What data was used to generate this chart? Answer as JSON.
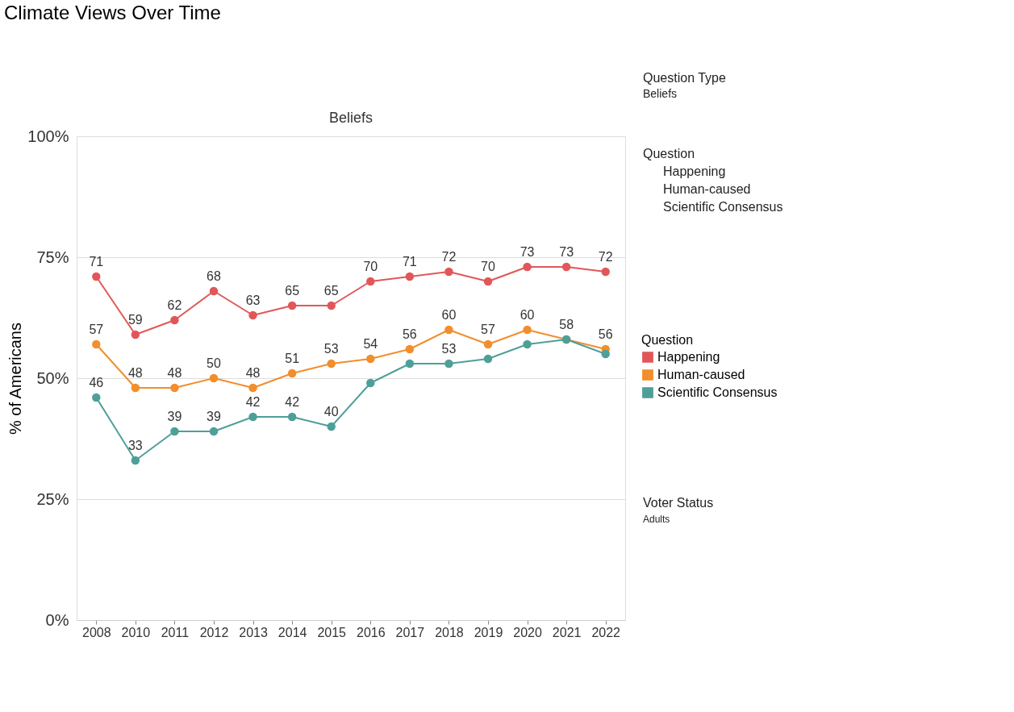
{
  "chart_data": {
    "type": "line",
    "title": "Climate Views Over Time",
    "subtitle": "Beliefs",
    "ylabel": "% of Americans",
    "legend_title": "Question",
    "categories": [
      "2008",
      "2010",
      "2011",
      "2012",
      "2013",
      "2014",
      "2015",
      "2016",
      "2017",
      "2018",
      "2019",
      "2020",
      "2021",
      "2022"
    ],
    "series": [
      {
        "name": "Happening",
        "color": "#e15759",
        "values": [
          71,
          59,
          62,
          68,
          63,
          65,
          65,
          70,
          71,
          72,
          70,
          73,
          73,
          72
        ],
        "value_labels": [
          "71",
          "59",
          "62",
          "68",
          "63",
          "65",
          "65",
          "70",
          "71",
          "72",
          "70",
          "73",
          "73",
          "72"
        ]
      },
      {
        "name": "Human-caused",
        "color": "#f28e2b",
        "values": [
          57,
          48,
          48,
          50,
          48,
          51,
          53,
          54,
          56,
          60,
          57,
          60,
          58,
          56
        ],
        "value_labels": [
          "57",
          "48",
          "48",
          "50",
          "48",
          "51",
          "53",
          "54",
          "56",
          "60",
          "57",
          "60",
          "58",
          "56"
        ]
      },
      {
        "name": "Scientific Consensus",
        "color": "#4e9f98",
        "values": [
          46,
          33,
          39,
          39,
          42,
          42,
          40,
          49,
          53,
          53,
          54,
          57,
          58,
          55
        ],
        "value_labels": [
          "46",
          "33",
          "39",
          "39",
          "42",
          "42",
          "40",
          null,
          null,
          "53",
          null,
          null,
          null,
          null
        ]
      }
    ],
    "ylim": [
      0,
      100
    ],
    "yticks": [
      {
        "value": 0,
        "label": "0%"
      },
      {
        "value": 25,
        "label": "25%"
      },
      {
        "value": 50,
        "label": "50%"
      },
      {
        "value": 75,
        "label": "75%"
      },
      {
        "value": 100,
        "label": "100%"
      }
    ],
    "grid": "y",
    "marker": "circle",
    "line_style": "solid",
    "legend": "right",
    "annotations": [
      "Question Type",
      "Beliefs",
      "Question",
      "Happening",
      "Human-caused",
      "Scientific Consensus",
      "Voter Status",
      "Adults"
    ]
  }
}
